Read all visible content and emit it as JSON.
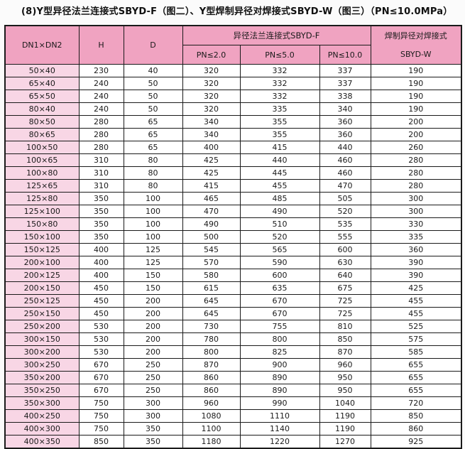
{
  "title": "(8)Y型异径法兰连接式SBYD-F（图二）、Y型焊制异径对焊接式SBYD-W（图三）（PN≤10.0MPa）",
  "colors": {
    "header_pink": "#f0a3c1",
    "row_label_pink": "#f8d6e5",
    "cell_white": "#ffffff",
    "border_black": "#1a1a1a",
    "page_background": "#fbfbfb"
  },
  "table": {
    "col_headers": {
      "dn": "DN1×DN2",
      "h": "H",
      "d": "D",
      "flange_group": "异径法兰连接式SBYD-F",
      "pn1": "PN≤2.0",
      "pn2": "PN≤5.0",
      "pn3": "PN≤10.0",
      "weld_line1": "焊制异径对焊接式",
      "weld_line2": "SBYD-W"
    },
    "rows": [
      [
        "50×40",
        "230",
        "40",
        "320",
        "332",
        "337",
        "190"
      ],
      [
        "65×40",
        "240",
        "50",
        "320",
        "332",
        "337",
        "190"
      ],
      [
        "65×50",
        "240",
        "50",
        "320",
        "332",
        "338",
        "190"
      ],
      [
        "80×40",
        "240",
        "50",
        "320",
        "335",
        "340",
        "190"
      ],
      [
        "80×50",
        "280",
        "65",
        "340",
        "355",
        "360",
        "200"
      ],
      [
        "80×65",
        "280",
        "65",
        "340",
        "355",
        "360",
        "200"
      ],
      [
        "100×50",
        "280",
        "65",
        "400",
        "415",
        "440",
        "260"
      ],
      [
        "100×65",
        "310",
        "80",
        "425",
        "440",
        "460",
        "280"
      ],
      [
        "100×80",
        "310",
        "80",
        "425",
        "445",
        "460",
        "280"
      ],
      [
        "125×65",
        "310",
        "80",
        "415",
        "455",
        "470",
        "280"
      ],
      [
        "125×80",
        "350",
        "100",
        "465",
        "485",
        "505",
        "300"
      ],
      [
        "125×100",
        "350",
        "100",
        "470",
        "490",
        "520",
        "300"
      ],
      [
        "150×80",
        "350",
        "100",
        "490",
        "510",
        "535",
        "330"
      ],
      [
        "150×100",
        "350",
        "100",
        "500",
        "520",
        "555",
        "335"
      ],
      [
        "150×125",
        "400",
        "125",
        "545",
        "565",
        "600",
        "360"
      ],
      [
        "200×100",
        "400",
        "125",
        "570",
        "590",
        "630",
        "390"
      ],
      [
        "200×125",
        "400",
        "150",
        "580",
        "600",
        "640",
        "390"
      ],
      [
        "200×150",
        "450",
        "150",
        "615",
        "635",
        "675",
        "425"
      ],
      [
        "250×125",
        "450",
        "200",
        "645",
        "670",
        "725",
        "455"
      ],
      [
        "250×150",
        "450",
        "200",
        "645",
        "670",
        "725",
        "455"
      ],
      [
        "250×200",
        "530",
        "200",
        "730",
        "755",
        "810",
        "525"
      ],
      [
        "300×150",
        "530",
        "200",
        "780",
        "800",
        "850",
        "575"
      ],
      [
        "300×200",
        "530",
        "200",
        "800",
        "825",
        "870",
        "585"
      ],
      [
        "300×250",
        "670",
        "250",
        "870",
        "900",
        "960",
        "655"
      ],
      [
        "350×200",
        "670",
        "250",
        "860",
        "890",
        "950",
        "655"
      ],
      [
        "350×250",
        "670",
        "250",
        "860",
        "890",
        "950",
        "655"
      ],
      [
        "350×300",
        "750",
        "300",
        "960",
        "990",
        "1040",
        "720"
      ],
      [
        "400×250",
        "750",
        "300",
        "1080",
        "1110",
        "1190",
        "850"
      ],
      [
        "400×300",
        "750",
        "350",
        "1100",
        "1140",
        "1190",
        "860"
      ],
      [
        "400×350",
        "850",
        "350",
        "1180",
        "1220",
        "1270",
        "925"
      ]
    ]
  }
}
